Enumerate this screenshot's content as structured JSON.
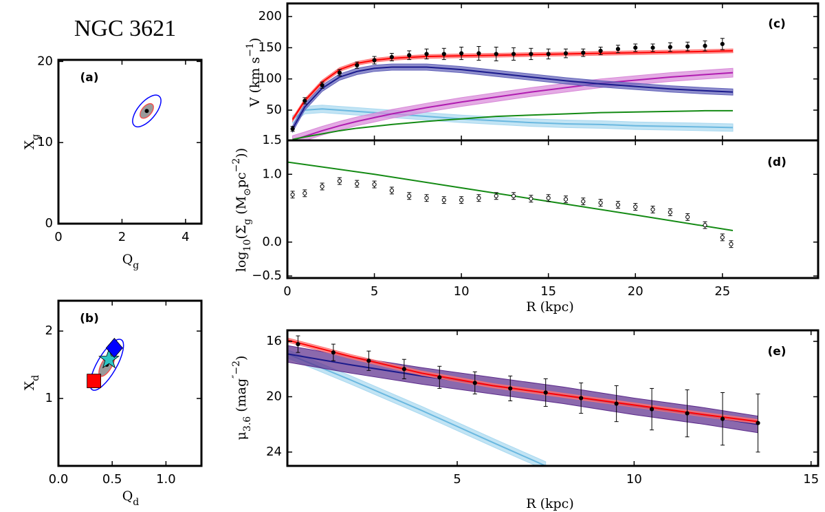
{
  "chart_data": [
    {
      "type": "scatter",
      "title": "NGC 3621",
      "panel_label": "(a)",
      "xlabel": [
        {
          "text": "Q"
        },
        {
          "text": "g",
          "script": "sub"
        }
      ],
      "ylabel": [
        {
          "text": "X"
        },
        {
          "text": "g",
          "script": "sub"
        }
      ],
      "xlim": [
        0,
        4.5
      ],
      "xticks": [
        0,
        2,
        4
      ],
      "ylim": [
        0,
        20.2
      ],
      "yticks": [
        0,
        10,
        20
      ],
      "series": [
        {
          "kind": "contour",
          "color": "#0000ff",
          "x": [
            2.78
          ],
          "values": [
            13.9
          ]
        }
      ]
    },
    {
      "type": "scatter",
      "panel_label": "(b)",
      "xlabel": [
        {
          "text": "Q"
        },
        {
          "text": "d",
          "script": "sub"
        }
      ],
      "ylabel": [
        {
          "text": "X"
        },
        {
          "text": "d",
          "script": "sub"
        }
      ],
      "xlim": [
        0,
        1.33
      ],
      "xticks": [
        {
          "value": 0,
          "label": "0.0"
        },
        {
          "value": 0.5,
          "label": "0.5"
        },
        {
          "value": 1,
          "label": "1.0"
        }
      ],
      "ylim": [
        0,
        2.45
      ],
      "yticks": [
        1,
        2
      ],
      "series": [
        {
          "kind": "contour",
          "color": "#0000ff",
          "x": [
            0.45
          ],
          "values": [
            1.5
          ]
        },
        {
          "kind": "marker",
          "marker": "square",
          "color": "#ff0000",
          "x": [
            0.33
          ],
          "values": [
            1.26
          ]
        },
        {
          "kind": "marker",
          "marker": "star",
          "color": "#2ec4c4",
          "x": [
            0.47
          ],
          "values": [
            1.58
          ]
        },
        {
          "kind": "marker",
          "marker": "diamond",
          "color": "#0000ff",
          "x": [
            0.52
          ],
          "values": [
            1.75
          ]
        }
      ]
    },
    {
      "type": "line",
      "panel_label": "(c)",
      "ylabel": [
        {
          "text": "V (km s"
        },
        {
          "text": "−1",
          "script": "super"
        },
        {
          "text": ")"
        }
      ],
      "xlim": [
        0,
        30.5
      ],
      "xticks": [
        0,
        5,
        10,
        15,
        20,
        25
      ],
      "xticklabels": false,
      "ylim": [
        1.5,
        221
      ],
      "yticks": [
        50,
        100,
        150,
        200
      ],
      "series": [
        {
          "kind": "band_line",
          "color": "#6ab8e0",
          "band_color": "#a8d8f0",
          "band": 6,
          "x": [
            0.3,
            1,
            2,
            3,
            4,
            5,
            6,
            8,
            10,
            12,
            14,
            16,
            18,
            20,
            22,
            24,
            25.6
          ],
          "values": [
            35,
            50,
            52,
            50,
            48,
            46,
            44,
            40,
            36,
            33,
            30,
            28,
            27,
            25,
            24,
            23,
            22
          ]
        },
        {
          "kind": "band_line",
          "color": "#b01cb0",
          "band_color": "#d888d8",
          "band": 7,
          "x": [
            0.3,
            1,
            2,
            3,
            4,
            5,
            6,
            8,
            10,
            12,
            14,
            16,
            18,
            20,
            22,
            24,
            25.6
          ],
          "values": [
            2,
            8,
            17,
            25,
            32,
            38,
            44,
            54,
            63,
            71,
            79,
            86,
            93,
            98,
            103,
            107,
            110
          ]
        },
        {
          "kind": "line",
          "color": "#138a13",
          "x": [
            0.3,
            1,
            2,
            3,
            4,
            5,
            6,
            8,
            10,
            12,
            14,
            16,
            18,
            20,
            22,
            24,
            25.6
          ],
          "values": [
            3,
            7,
            12,
            17,
            21,
            24,
            27,
            32,
            36,
            40,
            42,
            44,
            46,
            47,
            48,
            49,
            49
          ]
        },
        {
          "kind": "band_line",
          "color": "#1a1a8c",
          "band_color": "#6060b8",
          "band": 5,
          "x": [
            0.3,
            1,
            2,
            3,
            4,
            5,
            6,
            8,
            10,
            12,
            14,
            16,
            18,
            20,
            22,
            24,
            25.6
          ],
          "values": [
            20,
            55,
            85,
            103,
            112,
            117,
            119,
            119,
            115,
            109,
            103,
            97,
            92,
            88,
            84,
            81,
            79
          ]
        },
        {
          "kind": "band_line",
          "color": "#ff0000",
          "band_color": "#ff7070",
          "band": 3,
          "x": [
            0.3,
            1,
            2,
            3,
            4,
            5,
            6,
            8,
            10,
            12,
            14,
            16,
            18,
            20,
            22,
            24,
            25.6
          ],
          "values": [
            35,
            65,
            95,
            115,
            125,
            130,
            133,
            136,
            137,
            138,
            139,
            140,
            141,
            142,
            143,
            144,
            145
          ]
        },
        {
          "kind": "errorbar",
          "color": "#000000",
          "x": [
            0.3,
            1,
            2,
            3,
            4,
            5,
            6,
            7,
            8,
            9,
            10,
            11,
            12,
            13,
            14,
            15,
            16,
            17,
            18,
            19,
            20,
            21,
            22,
            23,
            24,
            25
          ],
          "values": [
            20,
            65,
            90,
            110,
            122,
            130,
            135,
            138,
            140,
            140,
            141,
            141,
            140,
            140,
            140,
            140,
            141,
            142,
            145,
            148,
            150,
            150,
            151,
            152,
            153,
            156
          ],
          "err": [
            4,
            5,
            5,
            5,
            5,
            6,
            6,
            7,
            8,
            9,
            10,
            11,
            11,
            10,
            9,
            8,
            7,
            6,
            6,
            6,
            6,
            6,
            7,
            7,
            8,
            9
          ]
        }
      ]
    },
    {
      "type": "line",
      "panel_label": "(d)",
      "xlabel": [
        {
          "text": "R (kpc)"
        }
      ],
      "ylabel": [
        {
          "text": "log"
        },
        {
          "text": "10",
          "script": "sub"
        },
        {
          "text": "(Σ"
        },
        {
          "text": "g",
          "script": "sub"
        },
        {
          "text": " (M"
        },
        {
          "text": "⊙",
          "script": "sub"
        },
        {
          "text": "pc"
        },
        {
          "text": "−2",
          "script": "super"
        },
        {
          "text": "))"
        }
      ],
      "xlim": [
        0,
        30.5
      ],
      "xticks": [
        0,
        5,
        10,
        15,
        20,
        25
      ],
      "ylim": [
        -0.53,
        1.5
      ],
      "yticks": [
        {
          "value": -0.5,
          "label": "−0.5"
        },
        {
          "value": 0,
          "label": "0.0"
        },
        {
          "value": 1,
          "label": "1.0"
        },
        {
          "value": 1.5,
          "label": "1.5"
        }
      ],
      "series": [
        {
          "kind": "line",
          "color": "#138a13",
          "x": [
            0,
            5,
            10,
            15,
            20,
            25.6
          ],
          "values": [
            1.18,
            1.0,
            0.8,
            0.6,
            0.4,
            0.17
          ]
        },
        {
          "kind": "errorbar",
          "color": "#000000",
          "marker_face": "#ffffff",
          "x": [
            0.3,
            1,
            2,
            3,
            4,
            5,
            6,
            7,
            8,
            9,
            10,
            11,
            12,
            13,
            14,
            15,
            16,
            17,
            18,
            19,
            20,
            21,
            22,
            23,
            24,
            25,
            25.5
          ],
          "values": [
            0.7,
            0.72,
            0.82,
            0.9,
            0.86,
            0.85,
            0.76,
            0.68,
            0.65,
            0.62,
            0.62,
            0.65,
            0.68,
            0.68,
            0.64,
            0.65,
            0.63,
            0.6,
            0.58,
            0.55,
            0.52,
            0.48,
            0.44,
            0.37,
            0.25,
            0.07,
            -0.03
          ],
          "err": 0.05
        }
      ]
    },
    {
      "type": "line",
      "panel_label": "(e)",
      "xlabel": [
        {
          "text": "R (kpc)"
        }
      ],
      "ylabel": [
        {
          "text": "μ"
        },
        {
          "text": "3.6",
          "script": "sub"
        },
        {
          "text": " (mag"
        },
        {
          "text": "″−2",
          "script": "super"
        },
        {
          "text": ")"
        }
      ],
      "xlim": [
        0.2,
        15.2
      ],
      "xticks": [
        5,
        10,
        15
      ],
      "ylim": [
        25,
        15.2
      ],
      "yticks": [
        16,
        20,
        24
      ],
      "series": [
        {
          "kind": "band_line",
          "color": "#6ab8e0",
          "band_color": "#a8d8f0",
          "band": 0.3,
          "x": [
            0.2,
            2,
            4,
            6,
            7.5
          ],
          "values": [
            16.9,
            18.8,
            21.0,
            23.3,
            25.0
          ]
        },
        {
          "kind": "band_line",
          "color": "#1a1a8c",
          "band_color": "#5a2a8a",
          "band": 0.6,
          "x": [
            0.2,
            2,
            4,
            6,
            8,
            10,
            12,
            13.5
          ],
          "values": [
            16.9,
            17.7,
            18.5,
            19.2,
            19.9,
            20.7,
            21.4,
            22.0
          ]
        },
        {
          "kind": "band_line",
          "color": "#ff0000",
          "band_color": "#ff7070",
          "band": 0.15,
          "x": [
            0.2,
            2,
            4,
            6,
            8,
            10,
            12,
            13.5
          ],
          "values": [
            15.9,
            17.1,
            18.3,
            19.2,
            19.9,
            20.6,
            21.3,
            21.8
          ]
        },
        {
          "kind": "errorbar",
          "color": "#000000",
          "x": [
            0.5,
            1.5,
            2.5,
            3.5,
            4.5,
            5.5,
            6.5,
            7.5,
            8.5,
            9.5,
            10.5,
            11.5,
            12.5,
            13.5
          ],
          "values": [
            16.2,
            16.8,
            17.4,
            18.0,
            18.6,
            19.0,
            19.4,
            19.7,
            20.1,
            20.5,
            20.9,
            21.2,
            21.6,
            21.9
          ],
          "err": [
            0.6,
            0.6,
            0.7,
            0.7,
            0.8,
            0.8,
            0.9,
            1.0,
            1.1,
            1.3,
            1.5,
            1.7,
            1.9,
            2.1
          ]
        }
      ]
    }
  ]
}
